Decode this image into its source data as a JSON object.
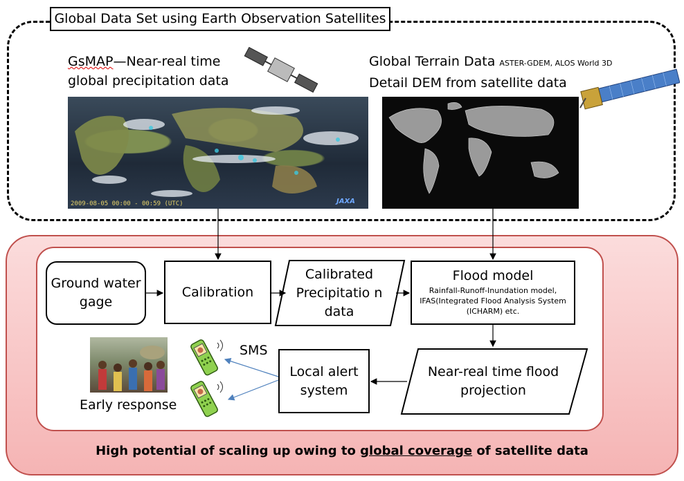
{
  "header": {
    "title": "Global Data Set using Earth Observation Satellites"
  },
  "gsmap": {
    "title_part1": "GsMAP",
    "title_part2": "—Near-real time",
    "title_line2": "global precipitation data",
    "image_stamp": "2009-08-05 00:00 - 00:59 (UTC)",
    "image_logo": "JAXA"
  },
  "terrain": {
    "title_line1": "Global Terrain Data",
    "title_sources": "ASTER-GDEM, ALOS World 3D",
    "title_line2": "Detail DEM from satellite data"
  },
  "flow": {
    "ground_gage": "Ground water gage",
    "calibration": "Calibration",
    "calibrated_precip": "Calibrated Precipitatio n data",
    "flood_model_title": "Flood model",
    "flood_model_detail": "Rainfall-Runoff-Inundation model, IFAS(Integrated Flood Analysis System (ICHARM) etc.",
    "near_real_time": "Near-real time flood projection",
    "local_alert": "Local alert system",
    "sms": "SMS",
    "early_response": "Early response"
  },
  "footer": {
    "part1": "High potential of scaling up owing to ",
    "part2": "global coverage",
    "part3": " of satellite data"
  },
  "colors": {
    "frame_red": "#c0504d",
    "pink_fill": "#f8c4c4",
    "arrow_blue": "#4f81bd"
  }
}
